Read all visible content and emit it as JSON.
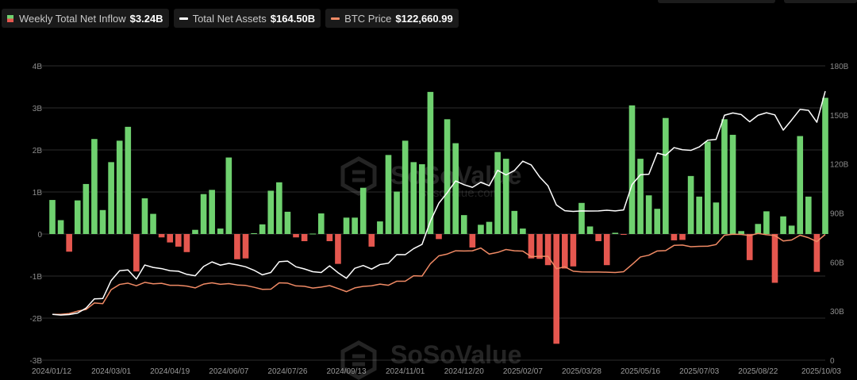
{
  "legend": [
    {
      "label": "Weekly Total Net Inflow",
      "value": "$3.24B",
      "icon": "bar-swatch-icon"
    },
    {
      "label": "Total Net Assets",
      "value": "$164.50B",
      "icon": "white-line-icon",
      "color": "#ffffff"
    },
    {
      "label": "BTC Price",
      "value": "$122,660.99",
      "icon": "orange-line-icon",
      "color": "#f08a65"
    }
  ],
  "watermark": {
    "brand": "SoSoValue",
    "sub": "sosovalue.com"
  },
  "colors": {
    "positive": "#6fd16f",
    "negative": "#e5574f",
    "assets_line": "#ffffff",
    "btc_line": "#f08a65",
    "grid": "#2b2b2b"
  },
  "chart_data": {
    "type": "bar",
    "left_axis": {
      "ticks": [
        "4B",
        "3B",
        "2B",
        "1B",
        "0",
        "-1B",
        "-2B",
        "-3B"
      ],
      "range": [
        -3,
        4
      ],
      "unit": "B"
    },
    "right_axis": {
      "ticks": [
        "180B",
        "150B",
        "120B",
        "90B",
        "60B",
        "30B",
        "0"
      ],
      "range": [
        0,
        180
      ],
      "unit": "B"
    },
    "x_tick_labels": [
      "2024/01/12",
      "2024/03/01",
      "2024/04/19",
      "2024/06/07",
      "2024/07/26",
      "2024/09/13",
      "2024/11/01",
      "2024/12/20",
      "2025/02/07",
      "2025/03/28",
      "2025/05/16",
      "2025/07/03",
      "2025/08/22",
      "2025/10/03"
    ],
    "weeks_start": "2024/01/12",
    "series": [
      {
        "name": "Weekly Total Net Inflow",
        "type": "bar",
        "axis": "left",
        "values": [
          0.81,
          0.33,
          -0.42,
          0.8,
          1.19,
          2.26,
          0.57,
          1.71,
          2.22,
          2.55,
          -0.89,
          0.85,
          0.48,
          -0.08,
          -0.2,
          -0.3,
          -0.43,
          0.1,
          0.95,
          1.05,
          0.13,
          1.82,
          -0.6,
          -0.58,
          0.02,
          0.23,
          1.03,
          1.23,
          0.53,
          -0.08,
          -0.17,
          0.01,
          0.49,
          -0.17,
          -0.71,
          0.39,
          0.39,
          1.1,
          -0.3,
          0.3,
          1.88,
          1.01,
          2.22,
          1.71,
          1.66,
          3.38,
          -0.12,
          2.73,
          2.16,
          0.45,
          -0.32,
          0.22,
          0.29,
          1.95,
          1.79,
          0.55,
          0.13,
          -0.58,
          -0.59,
          -0.74,
          -2.61,
          -0.82,
          -0.77,
          0.74,
          0.18,
          -0.17,
          -0.74,
          0.03,
          -0.02,
          3.06,
          1.79,
          0.92,
          0.6,
          2.76,
          -0.15,
          -0.14,
          1.38,
          0.89,
          2.2,
          0.75,
          2.73,
          2.36,
          0.07,
          -0.62,
          0.24,
          0.54,
          -1.16,
          0.42,
          0.2,
          2.33,
          0.89,
          -0.9,
          3.24
        ]
      },
      {
        "name": "Total Net Assets",
        "type": "line",
        "axis": "right",
        "values": [
          28.0,
          27.6,
          27.9,
          28.8,
          31.8,
          37.5,
          37.7,
          48.7,
          54.7,
          55.2,
          49.6,
          58.2,
          56.7,
          56.0,
          54.7,
          54.4,
          52.5,
          51.6,
          57.3,
          60.1,
          58.1,
          59.2,
          58.3,
          57.1,
          55.0,
          52.2,
          53.6,
          60.2,
          60.6,
          57.1,
          55.8,
          54.1,
          53.6,
          57.7,
          53.5,
          50.1,
          56.2,
          57.9,
          55.7,
          58.5,
          59.3,
          64.6,
          64.5,
          68.2,
          70.8,
          85.0,
          96.0,
          102.4,
          109.6,
          107.3,
          105.7,
          108.8,
          106.7,
          116.1,
          113.3,
          116.0,
          121.7,
          119.4,
          112.1,
          106.6,
          94.9,
          91.4,
          91.0,
          91.3,
          91.2,
          91.3,
          91.7,
          91.3,
          91.9,
          107.4,
          113.4,
          113.7,
          126.7,
          125.3,
          130.0,
          128.7,
          128.3,
          130.4,
          134.5,
          135.0,
          149.8,
          151.2,
          150.2,
          145.8,
          149.8,
          151.3,
          150.0,
          140.7,
          146.9,
          153.4,
          152.8,
          145.5,
          164.5
        ]
      },
      {
        "name": "BTC Price",
        "type": "line",
        "axis": "right",
        "values": [
          28.0,
          28.0,
          28.5,
          30.0,
          31.0,
          35.0,
          34.6,
          43.1,
          46.3,
          47.1,
          45.5,
          47.6,
          46.7,
          47.0,
          45.8,
          45.8,
          45.3,
          44.2,
          46.5,
          47.3,
          46.4,
          46.8,
          46.0,
          45.7,
          44.6,
          43.3,
          43.4,
          47.3,
          47.1,
          45.4,
          45.2,
          44.1,
          44.7,
          45.6,
          43.8,
          41.9,
          44.2,
          45.1,
          45.5,
          46.5,
          45.8,
          48.3,
          48.3,
          51.6,
          51.4,
          59.0,
          63.8,
          64.9,
          66.9,
          66.8,
          66.9,
          68.6,
          64.9,
          65.9,
          67.7,
          66.9,
          66.7,
          63.3,
          63.5,
          63.5,
          55.9,
          57.1,
          54.4,
          54.0,
          53.9,
          53.9,
          53.8,
          53.6,
          54.1,
          58.5,
          63.1,
          64.2,
          66.8,
          67.0,
          70.2,
          70.4,
          69.4,
          69.6,
          69.7,
          70.7,
          76.4,
          77.0,
          76.9,
          76.2,
          77.5,
          76.7,
          76.2,
          72.9,
          73.5,
          76.4,
          74.9,
          72.5,
          76.9
        ]
      }
    ]
  }
}
